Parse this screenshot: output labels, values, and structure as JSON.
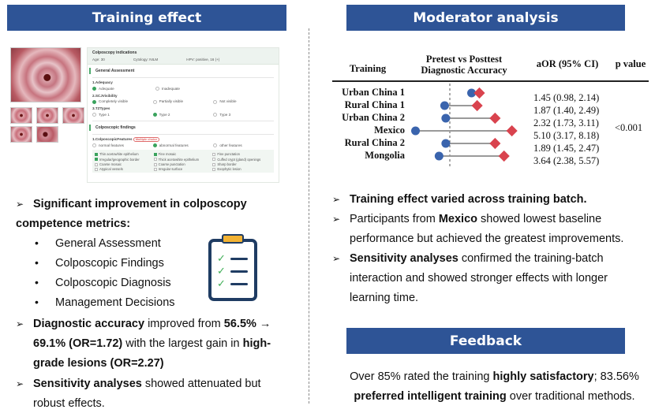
{
  "left_panel": {
    "title": "Training effect",
    "form": {
      "header": "Colposcopy indications",
      "age": "Age: 30",
      "cytology": "Cytology: NILM",
      "hpv": "HPV: positive, 16 (+)",
      "general_assessment": "General Assessment",
      "q1": "1.Adequacy",
      "q1_opts": [
        "Adequate",
        "Inadequate"
      ],
      "q2": "2.SCJVisibility",
      "q2_opts": [
        "Completely visible",
        "Partially visible",
        "Not visible"
      ],
      "q3": "3.TZTypes",
      "q3_opts": [
        "Type 1",
        "Type 2",
        "Type 3"
      ],
      "findings": "Colposcopic findings",
      "q4": "1.ColposcopicFeatures",
      "q4_tag": "Multiple choice",
      "q4_opts": [
        "normal features",
        "abnormal features",
        "other features"
      ],
      "features": [
        [
          "Thin acetowhite epithelium",
          "Fine mosaic",
          "Fine punctation"
        ],
        [
          "Irregular/geographic border",
          "Thick acetowhite epithelium",
          "Cuffed crypt (gland) openings"
        ],
        [
          "Coarse mosaic",
          "Coarse punctation",
          "Sharp border"
        ],
        [
          "Atypical vessels",
          "Irregular surface",
          "Exophytic lesion"
        ]
      ]
    },
    "bullet1_title": "Significant improvement in colposcopy competence metrics:",
    "sub_items": [
      "General Assessment",
      "Colposcopic Findings",
      "Colposcopic Diagnosis",
      "Management Decisions"
    ],
    "bullet2": {
      "a": "Diagnostic accuracy",
      "b": " improved from ",
      "c": "56.5% →",
      "d": "69.1% (OR=1.72)",
      "e": " with the largest gain in ",
      "f": "high-",
      "g": "grade lesions (OR=2.27)"
    },
    "bullet3": {
      "a": "Sensitivity analyses",
      "b": " showed attenuated but",
      "c": "robust effects."
    }
  },
  "right_panel": {
    "title": "Moderator analysis",
    "table_header": {
      "training": "Training",
      "middle_line1": "Pretest vs Posttest",
      "middle_line2": "Diagnostic Accuracy",
      "aor": "aOR (95% CI)",
      "p": "p value"
    },
    "p_value": "<0.001",
    "bullets": {
      "b1": "Training effect varied across training batch.",
      "b2a": "Participants from ",
      "b2b": "Mexico",
      "b2c": " showed lowest baseline",
      "b2d": "performance but achieved the greatest improvements.",
      "b3a": "Sensitivity analyses",
      "b3b": " confirmed the training-batch",
      "b3c": "interaction and showed stronger effects with longer",
      "b3d": "learning time."
    }
  },
  "feedback": {
    "title": "Feedback",
    "l1a": "Over 85% rated the training ",
    "l1b": "highly satisfactory",
    "l1c": "; 83.56%",
    "l2a": "preferred intelligent training",
    "l2b": " over traditional methods."
  },
  "chart_data": {
    "type": "dumbbell",
    "title": "",
    "columns": [
      "Training",
      "Pretest vs Posttest Diagnostic Accuracy",
      "aOR (95% CI)",
      "p value"
    ],
    "xlim": [
      0.0,
      1.0
    ],
    "rows": [
      {
        "name": "Urban China 1",
        "pretest": 0.56,
        "posttest": 0.63,
        "aor": "1.45 (0.98, 2.14)"
      },
      {
        "name": "Rural China 1",
        "pretest": 0.32,
        "posttest": 0.61,
        "aor": "1.87 (1.40, 2.49)"
      },
      {
        "name": "Urban China 2",
        "pretest": 0.33,
        "posttest": 0.77,
        "aor": "2.32 (1.73, 3.11)"
      },
      {
        "name": "Mexico",
        "pretest": 0.06,
        "posttest": 0.92,
        "aor": "5.10 (3.17, 8.18)"
      },
      {
        "name": "Rural China 2",
        "pretest": 0.33,
        "posttest": 0.77,
        "aor": "1.89 (1.45, 2.47)"
      },
      {
        "name": "Mongolia",
        "pretest": 0.27,
        "posttest": 0.85,
        "aor": "3.64 (2.38, 5.57)"
      }
    ],
    "p_value": "<0.001",
    "colors": {
      "pretest": "#3a64ad",
      "posttest": "#d9434e",
      "connector": "#9a9a9a",
      "reference": "#555555"
    }
  }
}
